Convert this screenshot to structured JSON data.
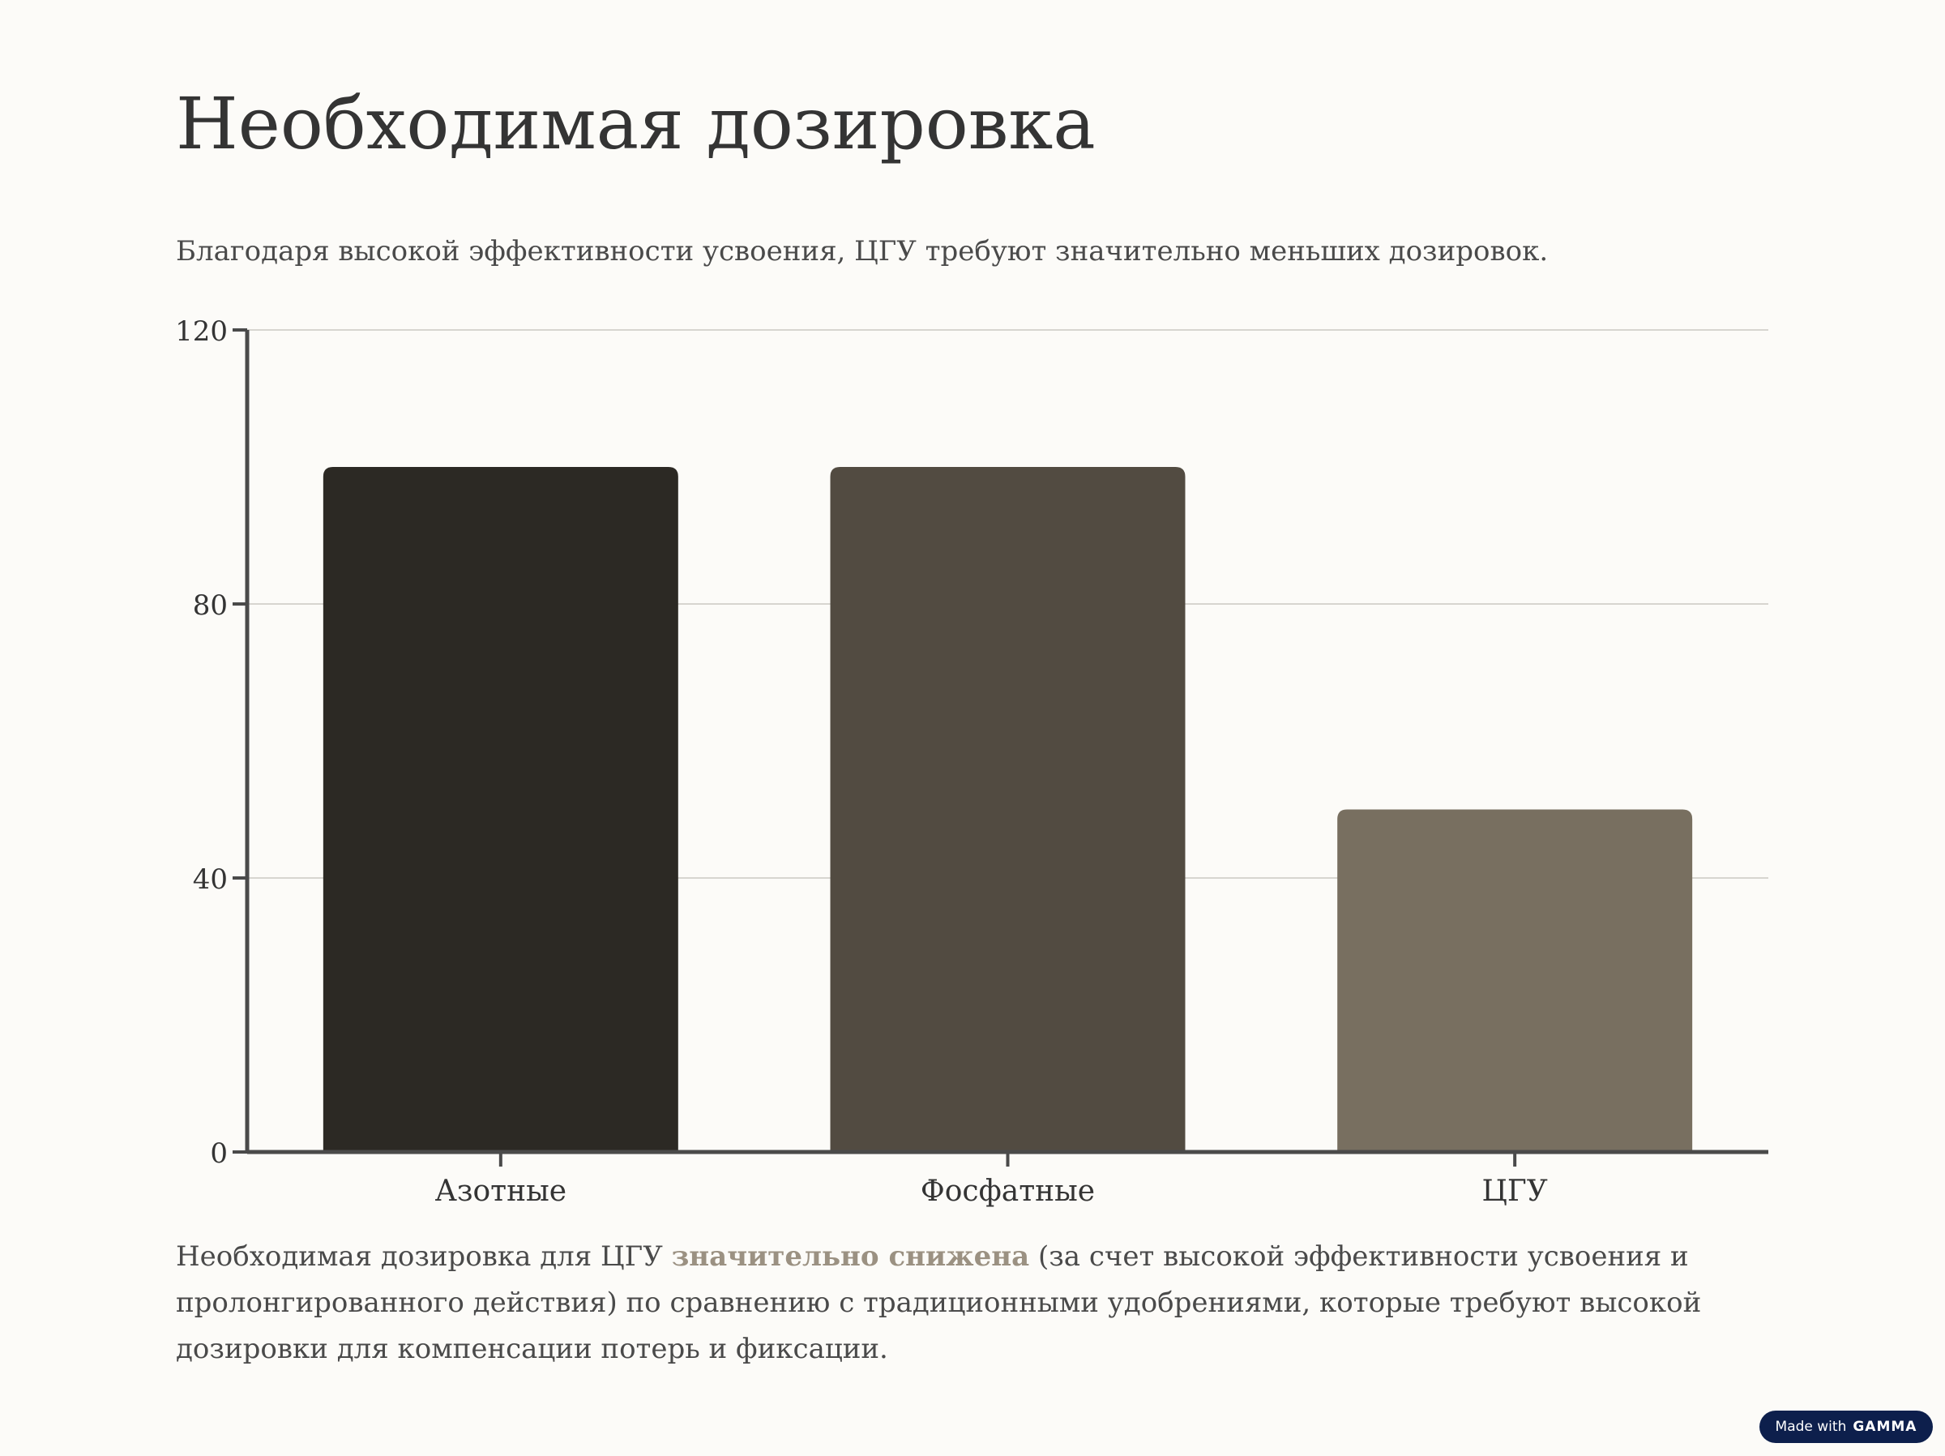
{
  "page": {
    "title": "Необходимая дозировка",
    "subtitle": "Благодаря высокой эффективности усвоения, ЦГУ требуют значительно меньших дозировок.",
    "footer": {
      "before": "Необходимая дозировка для ЦГУ ",
      "highlight": "значительно снижена",
      "after": " (за счет высокой эффективности усвоения и пролонгированного действия) по сравнению с традиционными удобрениями, которые требуют высокой дозировки для компенсации потерь и фиксации."
    }
  },
  "badge": {
    "prefix": "Made with",
    "brand": "GAMMA"
  },
  "chart_data": {
    "type": "bar",
    "categories": [
      "Азотные",
      "Фосфатные",
      "ЦГУ"
    ],
    "values": [
      100,
      100,
      50
    ],
    "colors": [
      "#2c2924",
      "#524b41",
      "#786f60"
    ],
    "ylim": [
      0,
      120
    ],
    "yticks": [
      0,
      40,
      80,
      120
    ],
    "ytick_labels": [
      "0",
      "40",
      "80",
      "120"
    ],
    "grid": true,
    "title": "",
    "xlabel": "",
    "ylabel": ""
  }
}
